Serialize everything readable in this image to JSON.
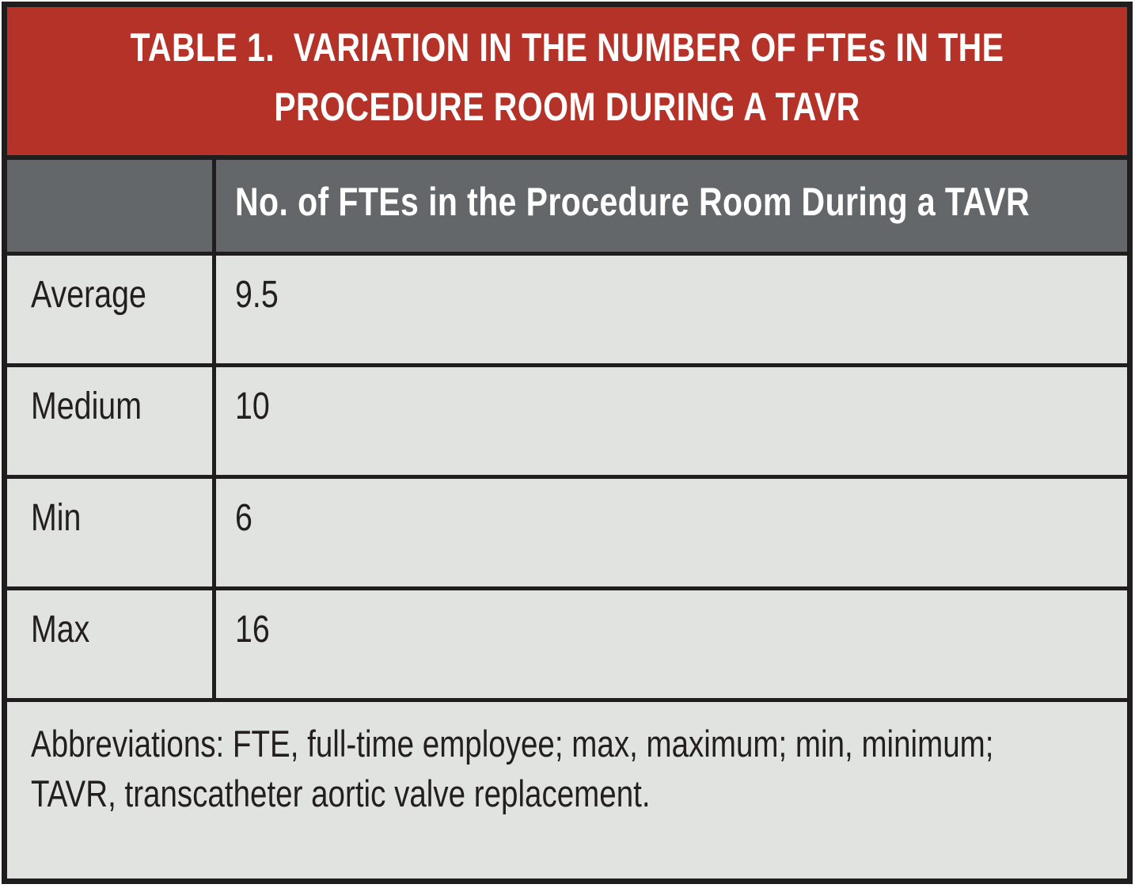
{
  "table": {
    "title_lines": [
      "TABLE 1.  VARIATION IN THE NUMBER OF FTEs IN THE",
      "PROCEDURE ROOM DURING A TAVR"
    ],
    "column_header": "No. of FTEs in the Procedure Room During a TAVR",
    "rows": [
      {
        "label": "Average",
        "value": "9.5"
      },
      {
        "label": "Medium",
        "value": "10"
      },
      {
        "label": "Min",
        "value": "6"
      },
      {
        "label": "Max",
        "value": "16"
      }
    ],
    "footnote_lines": [
      "Abbreviations: FTE, full-time employee; max, maximum; min, minimum;",
      "TAVR, transcatheter aortic valve replacement."
    ]
  },
  "chart_data": {
    "type": "table",
    "title": "TABLE 1. VARIATION IN THE NUMBER OF FTEs IN THE PROCEDURE ROOM DURING A TAVR",
    "columns": [
      "",
      "No. of FTEs in the Procedure Room During a TAVR"
    ],
    "categories": [
      "Average",
      "Medium",
      "Min",
      "Max"
    ],
    "values": [
      9.5,
      10,
      6,
      16
    ],
    "footnote": "Abbreviations: FTE, full-time employee; max, maximum; min, minimum; TAVR, transcatheter aortic valve replacement."
  },
  "colors": {
    "title_bg": "#b43228",
    "header_bg": "#64676a",
    "row_bg": "#e1e3e1",
    "border": "#1f1d1d",
    "title_text": "#ffffff",
    "body_text": "#231f20"
  }
}
